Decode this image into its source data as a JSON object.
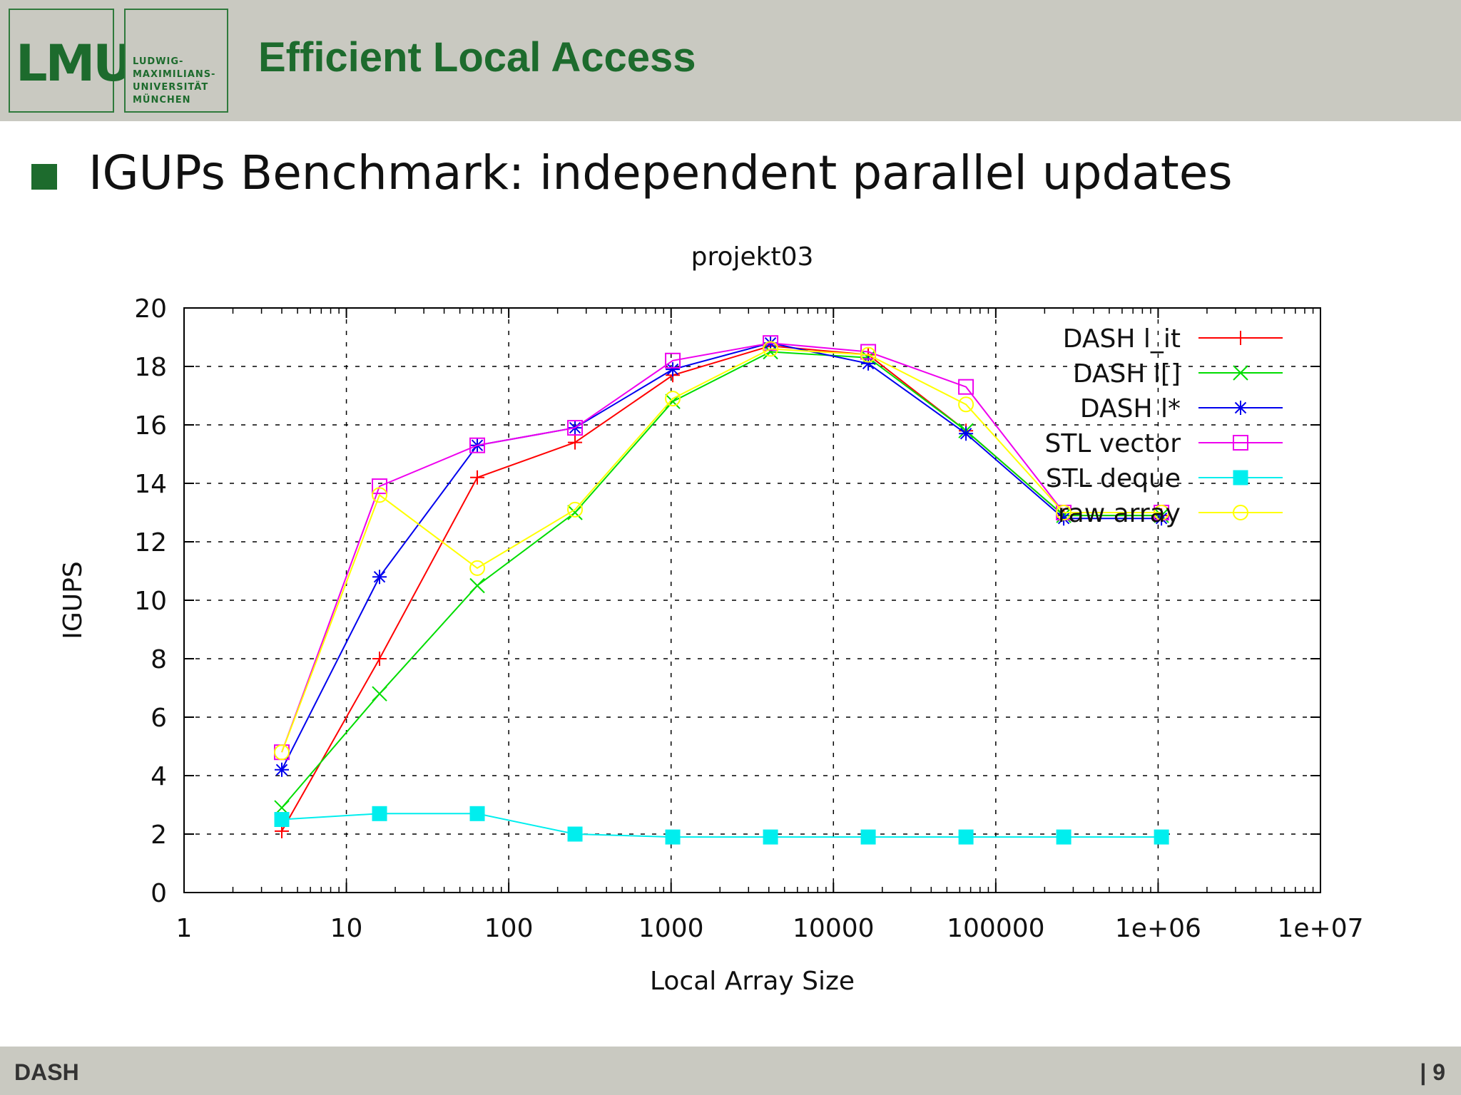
{
  "header": {
    "logo_text": "LMU",
    "logo_name_lines": [
      "LUDWIG-",
      "MAXIMILIANS-",
      "UNIVERSITÄT",
      "MÜNCHEN"
    ],
    "title": "Efficient Local Access",
    "accent_color": "#1d6b2d",
    "background_color": "#c9c9c1"
  },
  "bullet": {
    "text": "IGUPs Benchmark: independent parallel updates"
  },
  "footer": {
    "left": "DASH",
    "right": "| 9"
  },
  "chart_data": {
    "type": "line",
    "title": "projekt03",
    "xlabel": "Local Array Size",
    "ylabel": "IGUPS",
    "xscale": "log",
    "xlim": [
      1,
      10000000
    ],
    "ylim": [
      0,
      20
    ],
    "x_ticks": [
      1,
      10,
      100,
      1000,
      10000,
      100000,
      1000000,
      10000000
    ],
    "x_tick_labels": [
      "1",
      "10",
      "100",
      "1000",
      "10000",
      "100000",
      "1e+06",
      "1e+07"
    ],
    "y_ticks": [
      0,
      2,
      4,
      6,
      8,
      10,
      12,
      14,
      16,
      18,
      20
    ],
    "y_tick_labels": [
      "0",
      "2",
      "4",
      "6",
      "8",
      "10",
      "12",
      "14",
      "16",
      "18",
      "20"
    ],
    "grid": true,
    "legend_position": "top-right",
    "x": [
      4,
      16,
      64,
      256,
      1024,
      4096,
      16384,
      65536,
      262144,
      1048576
    ],
    "series": [
      {
        "name": "DASH l_it",
        "color": "#ff0000",
        "marker": "plus",
        "values": [
          2.1,
          8.0,
          14.2,
          15.4,
          17.7,
          18.7,
          18.4,
          15.8,
          12.9,
          12.9
        ]
      },
      {
        "name": "DASH l[]",
        "color": "#00dd00",
        "marker": "cross",
        "values": [
          2.9,
          6.8,
          10.5,
          13.0,
          16.8,
          18.5,
          18.3,
          15.8,
          12.9,
          12.9
        ]
      },
      {
        "name": "DASH l*",
        "color": "#0000ee",
        "marker": "star",
        "values": [
          4.2,
          10.8,
          15.3,
          15.9,
          17.9,
          18.8,
          18.1,
          15.7,
          12.8,
          12.8
        ]
      },
      {
        "name": "STL vector",
        "color": "#ee00ee",
        "marker": "square",
        "values": [
          4.8,
          13.9,
          15.3,
          15.9,
          18.2,
          18.8,
          18.5,
          17.3,
          13.0,
          13.0
        ]
      },
      {
        "name": "STL deque",
        "color": "#00eeee",
        "marker": "filled-square",
        "values": [
          2.5,
          2.7,
          2.7,
          2.0,
          1.9,
          1.9,
          1.9,
          1.9,
          1.9,
          1.9
        ]
      },
      {
        "name": "raw array",
        "color": "#ffff00",
        "marker": "circle",
        "values": [
          4.8,
          13.6,
          11.1,
          13.1,
          16.9,
          18.6,
          18.4,
          16.7,
          13.0,
          13.0
        ]
      }
    ]
  }
}
